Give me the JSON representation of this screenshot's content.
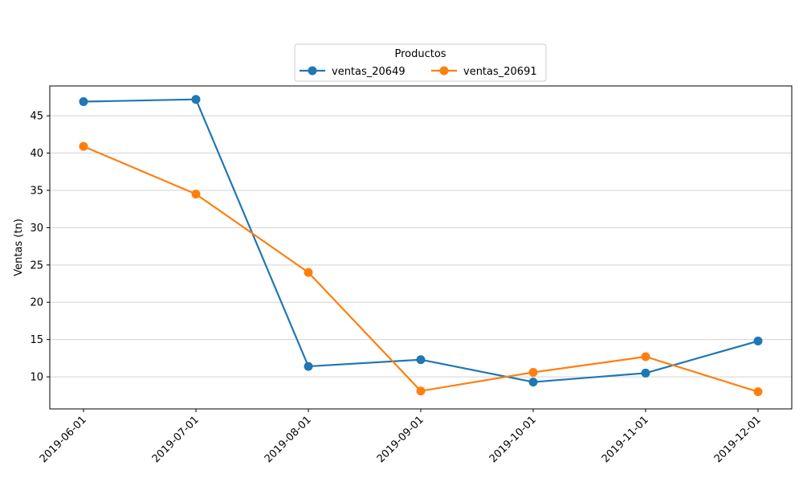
{
  "chart_data": {
    "type": "line",
    "title": "",
    "xlabel": "",
    "ylabel": "Ventas (tn)",
    "x": [
      "2019-06-01",
      "2019-07-01",
      "2019-08-01",
      "2019-09-01",
      "2019-10-01",
      "2019-11-01",
      "2019-12-01"
    ],
    "ylim": [
      5.7,
      49.0
    ],
    "yticks": [
      10,
      15,
      20,
      25,
      30,
      35,
      40,
      45
    ],
    "grid": "horizontal",
    "legend": {
      "title": "Productos",
      "placement": "top-center, above plot"
    },
    "series": [
      {
        "name": "ventas_20649",
        "color": "#1f77b4",
        "values": [
          46.9,
          47.2,
          11.4,
          12.3,
          9.3,
          10.5,
          14.8
        ]
      },
      {
        "name": "ventas_20691",
        "color": "#ff7f0e",
        "values": [
          40.9,
          34.5,
          24.0,
          8.1,
          10.6,
          12.7,
          8.0
        ]
      }
    ]
  }
}
